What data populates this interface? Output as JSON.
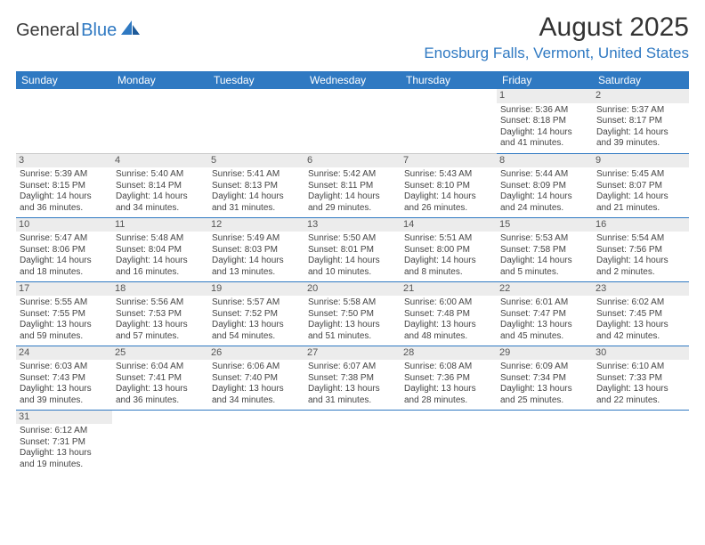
{
  "logo": {
    "text1": "General",
    "text2": "Blue"
  },
  "title": "August 2025",
  "location": "Enosburg Falls, Vermont, United States",
  "colors": {
    "header_bg": "#2f79c2",
    "header_text": "#ffffff",
    "daynum_bg": "#ececec",
    "border": "#2f79c2",
    "text": "#444444"
  },
  "day_labels": [
    "Sunday",
    "Monday",
    "Tuesday",
    "Wednesday",
    "Thursday",
    "Friday",
    "Saturday"
  ],
  "weeks": [
    [
      null,
      null,
      null,
      null,
      null,
      {
        "n": "1",
        "sr": "Sunrise: 5:36 AM",
        "ss": "Sunset: 8:18 PM",
        "dl": "Daylight: 14 hours and 41 minutes."
      },
      {
        "n": "2",
        "sr": "Sunrise: 5:37 AM",
        "ss": "Sunset: 8:17 PM",
        "dl": "Daylight: 14 hours and 39 minutes."
      }
    ],
    [
      {
        "n": "3",
        "sr": "Sunrise: 5:39 AM",
        "ss": "Sunset: 8:15 PM",
        "dl": "Daylight: 14 hours and 36 minutes."
      },
      {
        "n": "4",
        "sr": "Sunrise: 5:40 AM",
        "ss": "Sunset: 8:14 PM",
        "dl": "Daylight: 14 hours and 34 minutes."
      },
      {
        "n": "5",
        "sr": "Sunrise: 5:41 AM",
        "ss": "Sunset: 8:13 PM",
        "dl": "Daylight: 14 hours and 31 minutes."
      },
      {
        "n": "6",
        "sr": "Sunrise: 5:42 AM",
        "ss": "Sunset: 8:11 PM",
        "dl": "Daylight: 14 hours and 29 minutes."
      },
      {
        "n": "7",
        "sr": "Sunrise: 5:43 AM",
        "ss": "Sunset: 8:10 PM",
        "dl": "Daylight: 14 hours and 26 minutes."
      },
      {
        "n": "8",
        "sr": "Sunrise: 5:44 AM",
        "ss": "Sunset: 8:09 PM",
        "dl": "Daylight: 14 hours and 24 minutes."
      },
      {
        "n": "9",
        "sr": "Sunrise: 5:45 AM",
        "ss": "Sunset: 8:07 PM",
        "dl": "Daylight: 14 hours and 21 minutes."
      }
    ],
    [
      {
        "n": "10",
        "sr": "Sunrise: 5:47 AM",
        "ss": "Sunset: 8:06 PM",
        "dl": "Daylight: 14 hours and 18 minutes."
      },
      {
        "n": "11",
        "sr": "Sunrise: 5:48 AM",
        "ss": "Sunset: 8:04 PM",
        "dl": "Daylight: 14 hours and 16 minutes."
      },
      {
        "n": "12",
        "sr": "Sunrise: 5:49 AM",
        "ss": "Sunset: 8:03 PM",
        "dl": "Daylight: 14 hours and 13 minutes."
      },
      {
        "n": "13",
        "sr": "Sunrise: 5:50 AM",
        "ss": "Sunset: 8:01 PM",
        "dl": "Daylight: 14 hours and 10 minutes."
      },
      {
        "n": "14",
        "sr": "Sunrise: 5:51 AM",
        "ss": "Sunset: 8:00 PM",
        "dl": "Daylight: 14 hours and 8 minutes."
      },
      {
        "n": "15",
        "sr": "Sunrise: 5:53 AM",
        "ss": "Sunset: 7:58 PM",
        "dl": "Daylight: 14 hours and 5 minutes."
      },
      {
        "n": "16",
        "sr": "Sunrise: 5:54 AM",
        "ss": "Sunset: 7:56 PM",
        "dl": "Daylight: 14 hours and 2 minutes."
      }
    ],
    [
      {
        "n": "17",
        "sr": "Sunrise: 5:55 AM",
        "ss": "Sunset: 7:55 PM",
        "dl": "Daylight: 13 hours and 59 minutes."
      },
      {
        "n": "18",
        "sr": "Sunrise: 5:56 AM",
        "ss": "Sunset: 7:53 PM",
        "dl": "Daylight: 13 hours and 57 minutes."
      },
      {
        "n": "19",
        "sr": "Sunrise: 5:57 AM",
        "ss": "Sunset: 7:52 PM",
        "dl": "Daylight: 13 hours and 54 minutes."
      },
      {
        "n": "20",
        "sr": "Sunrise: 5:58 AM",
        "ss": "Sunset: 7:50 PM",
        "dl": "Daylight: 13 hours and 51 minutes."
      },
      {
        "n": "21",
        "sr": "Sunrise: 6:00 AM",
        "ss": "Sunset: 7:48 PM",
        "dl": "Daylight: 13 hours and 48 minutes."
      },
      {
        "n": "22",
        "sr": "Sunrise: 6:01 AM",
        "ss": "Sunset: 7:47 PM",
        "dl": "Daylight: 13 hours and 45 minutes."
      },
      {
        "n": "23",
        "sr": "Sunrise: 6:02 AM",
        "ss": "Sunset: 7:45 PM",
        "dl": "Daylight: 13 hours and 42 minutes."
      }
    ],
    [
      {
        "n": "24",
        "sr": "Sunrise: 6:03 AM",
        "ss": "Sunset: 7:43 PM",
        "dl": "Daylight: 13 hours and 39 minutes."
      },
      {
        "n": "25",
        "sr": "Sunrise: 6:04 AM",
        "ss": "Sunset: 7:41 PM",
        "dl": "Daylight: 13 hours and 36 minutes."
      },
      {
        "n": "26",
        "sr": "Sunrise: 6:06 AM",
        "ss": "Sunset: 7:40 PM",
        "dl": "Daylight: 13 hours and 34 minutes."
      },
      {
        "n": "27",
        "sr": "Sunrise: 6:07 AM",
        "ss": "Sunset: 7:38 PM",
        "dl": "Daylight: 13 hours and 31 minutes."
      },
      {
        "n": "28",
        "sr": "Sunrise: 6:08 AM",
        "ss": "Sunset: 7:36 PM",
        "dl": "Daylight: 13 hours and 28 minutes."
      },
      {
        "n": "29",
        "sr": "Sunrise: 6:09 AM",
        "ss": "Sunset: 7:34 PM",
        "dl": "Daylight: 13 hours and 25 minutes."
      },
      {
        "n": "30",
        "sr": "Sunrise: 6:10 AM",
        "ss": "Sunset: 7:33 PM",
        "dl": "Daylight: 13 hours and 22 minutes."
      }
    ],
    [
      {
        "n": "31",
        "sr": "Sunrise: 6:12 AM",
        "ss": "Sunset: 7:31 PM",
        "dl": "Daylight: 13 hours and 19 minutes."
      },
      null,
      null,
      null,
      null,
      null,
      null
    ]
  ]
}
